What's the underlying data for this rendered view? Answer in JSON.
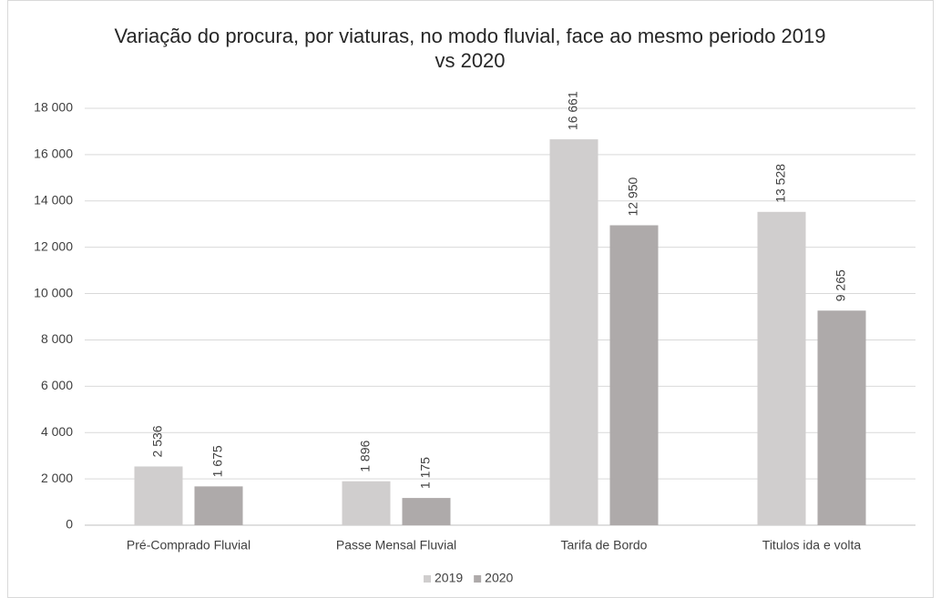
{
  "chart_data": {
    "type": "bar",
    "title": "Variação do procura, por viaturas, no modo fluvial, face ao mesmo periodo 2019 vs 2020",
    "categories": [
      "Pré-Comprado Fluvial",
      "Passe Mensal Fluvial",
      "Tarifa de Bordo",
      "Titulos ida e volta"
    ],
    "series": [
      {
        "name": "2019",
        "color": "#d0cece",
        "values": [
          2536,
          1896,
          16661,
          13528
        ],
        "value_labels": [
          "2 536",
          "1 896",
          "16 661",
          "13 528"
        ]
      },
      {
        "name": "2020",
        "color": "#aeaaaa",
        "values": [
          1675,
          1175,
          12950,
          9265
        ],
        "value_labels": [
          "1 675",
          "1 175",
          "12 950",
          "9 265"
        ]
      }
    ],
    "ylim": [
      0,
      18000
    ],
    "yticks": [
      0,
      {
        "value": 2000,
        "label": "2 000"
      },
      {
        "value": 4000,
        "label": "4 000"
      },
      {
        "value": 6000,
        "label": "6 000"
      },
      {
        "value": 8000,
        "label": "8 000"
      },
      {
        "value": 10000,
        "label": "10 000"
      },
      {
        "value": 12000,
        "label": "12 000"
      },
      {
        "value": 14000,
        "label": "14 000"
      },
      {
        "value": 16000,
        "label": "16 000"
      },
      {
        "value": 18000,
        "label": "18 000"
      }
    ],
    "grid": true,
    "legend": "bottom"
  }
}
